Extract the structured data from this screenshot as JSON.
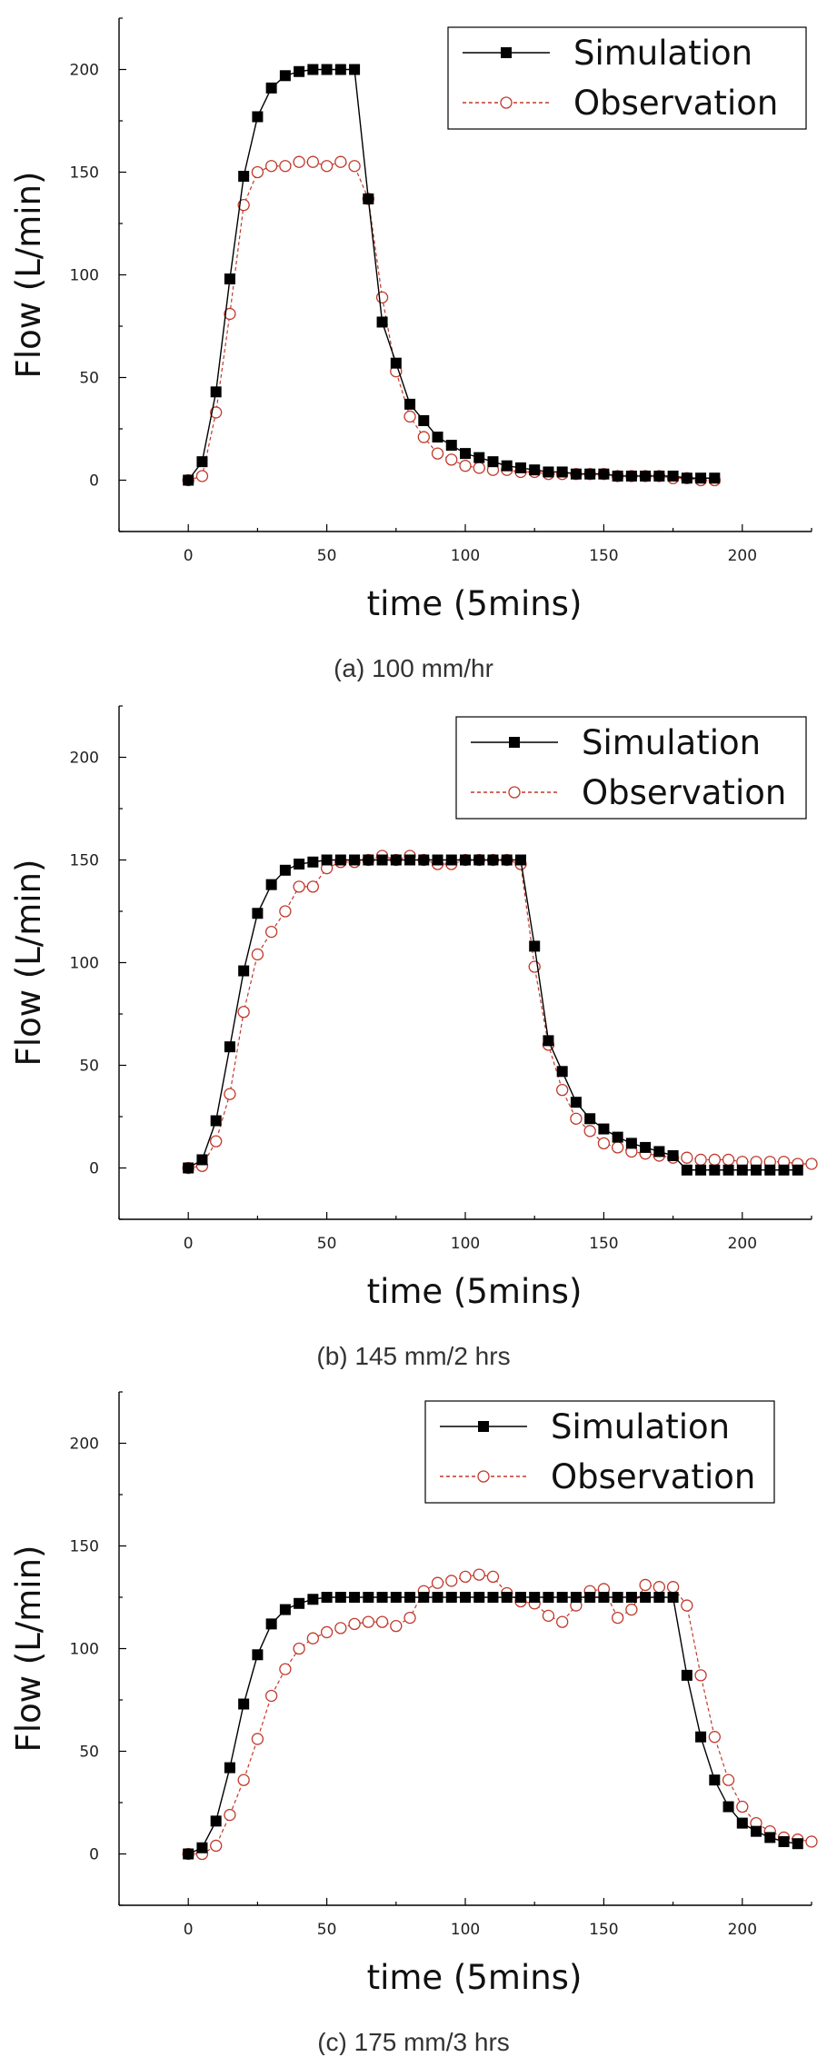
{
  "chart_data": [
    {
      "type": "line",
      "caption": "(a) 100 mm/hr",
      "xlabel": "time (5mins)",
      "ylabel": "Flow (L/min)",
      "xlim": [
        -25,
        225
      ],
      "ylim": [
        -25,
        225
      ],
      "xticks": [
        0,
        50,
        100,
        150,
        200
      ],
      "yticks": [
        0,
        50,
        100,
        150,
        200
      ],
      "legend_position": "top-right",
      "series": [
        {
          "name": "Simulation",
          "marker": "filled-square",
          "line": "solid",
          "color": "#000000",
          "x": [
            0,
            5,
            10,
            15,
            20,
            25,
            30,
            35,
            40,
            45,
            50,
            55,
            60,
            65,
            70,
            75,
            80,
            85,
            90,
            95,
            100,
            105,
            110,
            115,
            120,
            125,
            130,
            135,
            140,
            145,
            150,
            155,
            160,
            165,
            170,
            175,
            180,
            185,
            190
          ],
          "y": [
            0,
            9,
            43,
            98,
            148,
            177,
            191,
            197,
            199,
            200,
            200,
            200,
            200,
            137,
            77,
            57,
            37,
            29,
            21,
            17,
            13,
            11,
            9,
            7,
            6,
            5,
            4,
            4,
            3,
            3,
            3,
            2,
            2,
            2,
            2,
            2,
            1,
            1,
            1
          ]
        },
        {
          "name": "Observation",
          "marker": "open-circle",
          "line": "dashed",
          "color": "#c0392b",
          "x": [
            0,
            5,
            10,
            15,
            20,
            25,
            30,
            35,
            40,
            45,
            50,
            55,
            60,
            65,
            70,
            75,
            80,
            85,
            90,
            95,
            100,
            105,
            110,
            115,
            120,
            125,
            130,
            135,
            140,
            145,
            150,
            155,
            160,
            165,
            170,
            175,
            180,
            185,
            190
          ],
          "y": [
            0,
            2,
            33,
            81,
            134,
            150,
            153,
            153,
            155,
            155,
            153,
            155,
            153,
            137,
            89,
            53,
            31,
            21,
            13,
            10,
            7,
            6,
            5,
            5,
            4,
            4,
            3,
            3,
            3,
            3,
            3,
            2,
            2,
            2,
            2,
            1,
            1,
            0,
            0
          ]
        }
      ]
    },
    {
      "type": "line",
      "caption": "(b) 145 mm/2 hrs",
      "xlabel": "time (5mins)",
      "ylabel": "Flow (L/min)",
      "xlim": [
        -25,
        225
      ],
      "ylim": [
        -25,
        225
      ],
      "xticks": [
        0,
        50,
        100,
        150,
        200
      ],
      "yticks": [
        0,
        50,
        100,
        150,
        200
      ],
      "legend_position": "top-right",
      "series": [
        {
          "name": "Simulation",
          "marker": "filled-square",
          "line": "solid",
          "color": "#000000",
          "x": [
            0,
            5,
            10,
            15,
            20,
            25,
            30,
            35,
            40,
            45,
            50,
            55,
            60,
            65,
            70,
            75,
            80,
            85,
            90,
            95,
            100,
            105,
            110,
            115,
            120,
            125,
            130,
            135,
            140,
            145,
            150,
            155,
            160,
            165,
            170,
            175,
            180,
            185,
            190,
            195,
            200,
            205,
            210,
            215,
            220
          ],
          "y": [
            0,
            4,
            23,
            59,
            96,
            124,
            138,
            145,
            148,
            149,
            150,
            150,
            150,
            150,
            150,
            150,
            150,
            150,
            150,
            150,
            150,
            150,
            150,
            150,
            150,
            108,
            62,
            47,
            32,
            24,
            19,
            15,
            12,
            10,
            8,
            6,
            -1,
            -1,
            -1,
            -1,
            -1,
            -1,
            -1,
            -1,
            -1
          ]
        },
        {
          "name": "Observation",
          "marker": "open-circle",
          "line": "dashed",
          "color": "#c0392b",
          "x": [
            0,
            5,
            10,
            15,
            20,
            25,
            30,
            35,
            40,
            45,
            50,
            55,
            60,
            65,
            70,
            75,
            80,
            85,
            90,
            95,
            100,
            105,
            110,
            115,
            120,
            125,
            130,
            135,
            140,
            145,
            150,
            155,
            160,
            165,
            170,
            175,
            180,
            185,
            190,
            195,
            200,
            205,
            210,
            215,
            220,
            225
          ],
          "y": [
            0,
            1,
            13,
            36,
            76,
            104,
            115,
            125,
            137,
            137,
            146,
            149,
            149,
            150,
            152,
            150,
            152,
            150,
            148,
            148,
            150,
            150,
            150,
            150,
            148,
            98,
            60,
            38,
            24,
            18,
            12,
            10,
            8,
            7,
            6,
            5,
            5,
            4,
            4,
            4,
            3,
            3,
            3,
            3,
            2,
            2
          ]
        }
      ]
    },
    {
      "type": "line",
      "caption": "(c) 175 mm/3 hrs",
      "xlabel": "time (5mins)",
      "ylabel": "Flow (L/min)",
      "xlim": [
        -25,
        225
      ],
      "ylim": [
        -25,
        225
      ],
      "xticks": [
        0,
        50,
        100,
        150,
        200
      ],
      "yticks": [
        0,
        50,
        100,
        150,
        200
      ],
      "legend_position": "top-right",
      "series": [
        {
          "name": "Simulation",
          "marker": "filled-square",
          "line": "solid",
          "color": "#000000",
          "x": [
            0,
            5,
            10,
            15,
            20,
            25,
            30,
            35,
            40,
            45,
            50,
            55,
            60,
            65,
            70,
            75,
            80,
            85,
            90,
            95,
            100,
            105,
            110,
            115,
            120,
            125,
            130,
            135,
            140,
            145,
            150,
            155,
            160,
            165,
            170,
            175,
            180,
            185,
            190,
            195,
            200,
            205,
            210,
            215,
            220
          ],
          "y": [
            0,
            3,
            16,
            42,
            73,
            97,
            112,
            119,
            122,
            124,
            125,
            125,
            125,
            125,
            125,
            125,
            125,
            125,
            125,
            125,
            125,
            125,
            125,
            125,
            125,
            125,
            125,
            125,
            125,
            125,
            125,
            125,
            125,
            125,
            125,
            125,
            87,
            57,
            36,
            23,
            15,
            11,
            8,
            6,
            5
          ]
        },
        {
          "name": "Observation",
          "marker": "open-circle",
          "line": "dashed",
          "color": "#c0392b",
          "x": [
            0,
            5,
            10,
            15,
            20,
            25,
            30,
            35,
            40,
            45,
            50,
            55,
            60,
            65,
            70,
            75,
            80,
            85,
            90,
            95,
            100,
            105,
            110,
            115,
            120,
            125,
            130,
            135,
            140,
            145,
            150,
            155,
            160,
            165,
            170,
            175,
            180,
            185,
            190,
            195,
            200,
            205,
            210,
            215,
            220,
            225
          ],
          "y": [
            0,
            0,
            4,
            19,
            36,
            56,
            77,
            90,
            100,
            105,
            108,
            110,
            112,
            113,
            113,
            111,
            115,
            128,
            132,
            133,
            135,
            136,
            135,
            127,
            123,
            122,
            116,
            113,
            121,
            128,
            129,
            115,
            119,
            131,
            130,
            130,
            121,
            87,
            57,
            36,
            23,
            15,
            11,
            8,
            7,
            6
          ]
        }
      ]
    }
  ]
}
